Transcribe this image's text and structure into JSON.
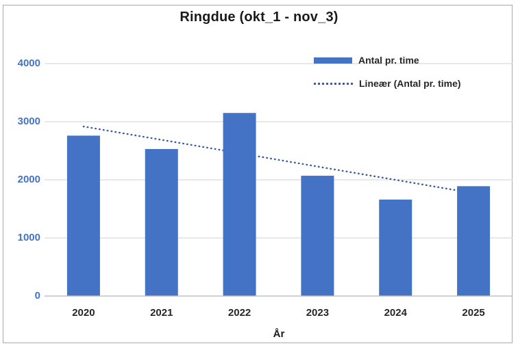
{
  "chart_data": {
    "type": "bar",
    "title": "Ringdue (okt_1 - nov_3)",
    "xlabel": "År",
    "ylabel": "",
    "categories": [
      "2020",
      "2021",
      "2022",
      "2023",
      "2024",
      "2025"
    ],
    "series": [
      {
        "name": "Antal pr. time",
        "values": [
          2760,
          2530,
          3150,
          2070,
          1660,
          1890
        ]
      }
    ],
    "trendline": {
      "label": "Lineær (Antal pr. time)",
      "fit": "linear",
      "style": "dotted"
    },
    "yticks": [
      0,
      1000,
      2000,
      3000,
      4000
    ],
    "ylim": [
      0,
      4000
    ],
    "grid": true,
    "legend_position": "top-right"
  },
  "legend": {
    "items": [
      {
        "label": "Antal pr. time",
        "swatch": "bar"
      },
      {
        "label": "Lineær (Antal pr. time)",
        "swatch": "dotted-line"
      }
    ]
  },
  "colors": {
    "bar_fill": "#4472C4",
    "trend_line": "#3A5BA5",
    "y_tick_label": "#4472C4",
    "x_tick_label": "#262626",
    "gridline": "#D9D9D9",
    "axis_line": "#C0C0C0",
    "title_text": "#1A1A1A",
    "frame_border": "#A8A8A8"
  }
}
